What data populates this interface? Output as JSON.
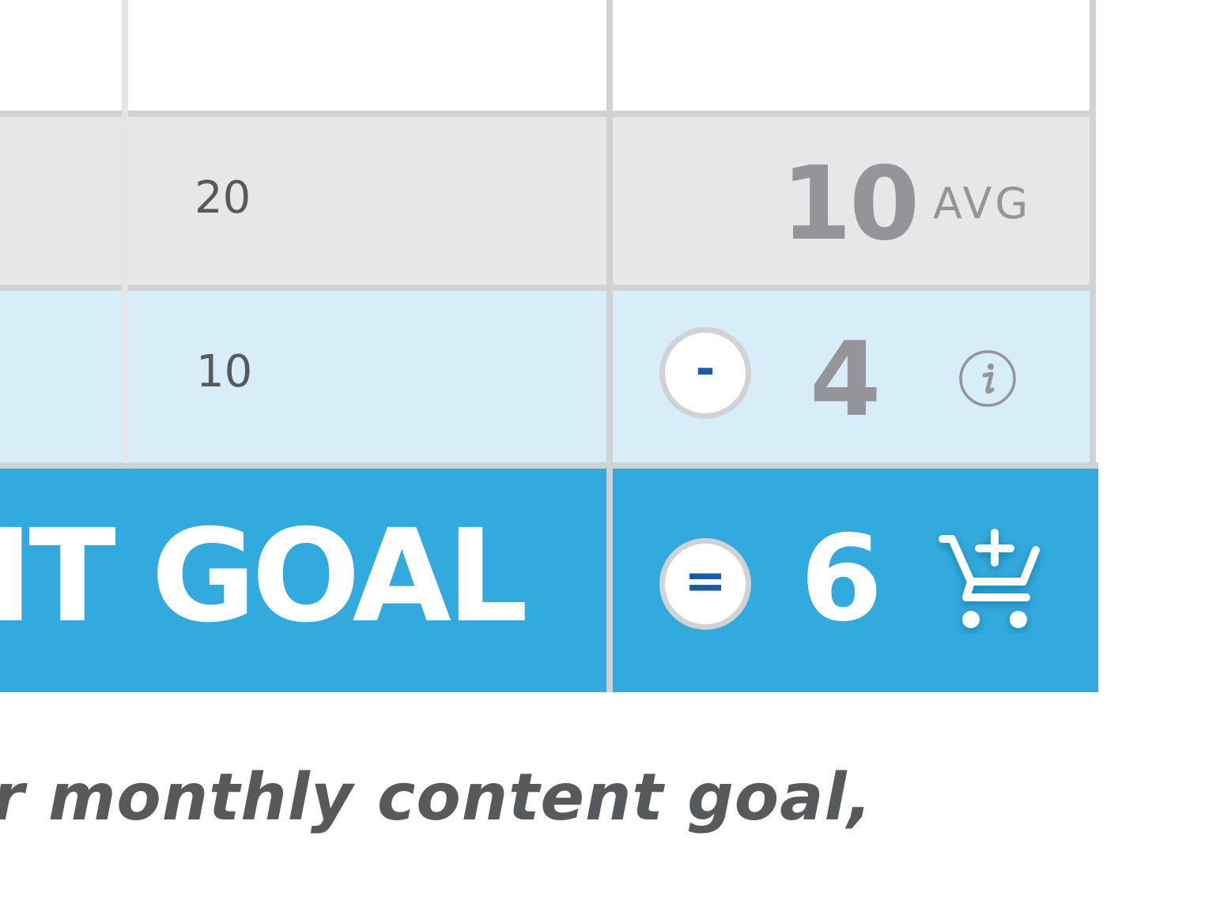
{
  "table": {
    "gray_row": {
      "middle_value": "20",
      "result_value": "10",
      "result_unit": "AVG"
    },
    "blue_row": {
      "middle_value": "10",
      "operator": "-",
      "result_value": "4",
      "info_icon": "info-icon"
    },
    "goal_row": {
      "label": "IT GOAL",
      "operator": "=",
      "result_value": "6",
      "cart_icon": "add-to-cart-icon"
    }
  },
  "caption": "r monthly content goal,",
  "colors": {
    "gray_row": "#e6e7e9",
    "blue_row": "#d7edf7",
    "goal_row": "#33aadd",
    "grid": "#d1d2d4",
    "operator": "#1a5aa8",
    "muted_text": "#939598",
    "dark_text": "#58595b"
  }
}
